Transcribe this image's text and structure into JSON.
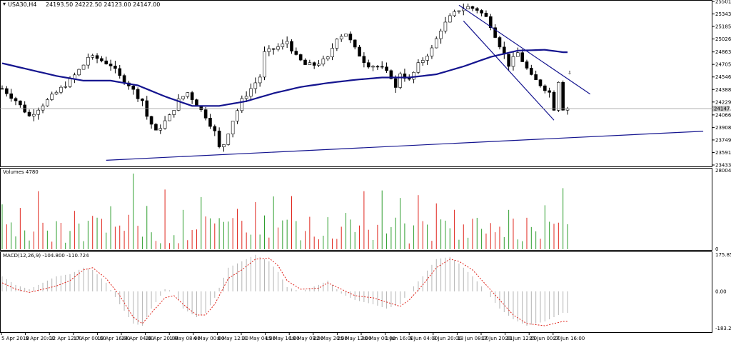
{
  "header": {
    "arrow_glyph": "▾",
    "symbol": "USA30,H4",
    "ohlc": "24193.50 24222.50 24123.00 24147.00"
  },
  "volume_panel": {
    "label": "Volumes 4780"
  },
  "macd_panel": {
    "label": "MACD(12,26,9) -104.800 -110.724"
  },
  "colors": {
    "bull": "#2e9e2e",
    "bear": "#e0251c",
    "ma": "#14148f",
    "trendline": "#14148f",
    "macd_signal": "#e0251c",
    "macd_hist": "#b4b4b4",
    "arrow": "#e0251c"
  },
  "annotation": {
    "arrow": "⇩"
  },
  "chart_data": [
    {
      "type": "candlestick",
      "ylim": [
        23433.1,
        25501.9
      ],
      "y_ticks": [
        "25501.90",
        "25343.50",
        "25185.10",
        "25026.70",
        "24863.50",
        "24705.10",
        "24546.70",
        "24388.30",
        "24229.90",
        "24066.70",
        "23908.30",
        "23749.90",
        "23591.50",
        "23433.10"
      ],
      "price_tag": "24147.00",
      "x_ticks": [
        "5 Apr 2018",
        "9 Apr 20:00",
        "12 Apr 12:00",
        "17 Apr 00:00",
        "19 Apr 16:00",
        "24 Apr 04:00",
        "26 Apr 20:00",
        "1 May 08:00",
        "4 May 00:00",
        "8 May 12:00",
        "11 May 04:00",
        "15 May 16:00",
        "18 May 08:00",
        "22 May 20:00",
        "25 May 12:00",
        "30 May 00:00",
        "1 Jun 16:00",
        "6 Jun 04:00",
        "8 Jun 20:00",
        "13 Jun 08:00",
        "17 Jun 20:01",
        "20 Jun 12:00",
        "25 Jun 00:00",
        "27 Jun 16:00"
      ],
      "close_path": [
        [
          0,
          24400
        ],
        [
          3,
          24250
        ],
        [
          6,
          24050
        ],
        [
          9,
          24200
        ],
        [
          12,
          24350
        ],
        [
          15,
          24500
        ],
        [
          18,
          24700
        ],
        [
          19,
          24800
        ],
        [
          21,
          24780
        ],
        [
          24,
          24700
        ],
        [
          26,
          24550
        ],
        [
          28,
          24450
        ],
        [
          30,
          24300
        ],
        [
          31,
          24250
        ],
        [
          32,
          24050
        ],
        [
          34,
          23850
        ],
        [
          37,
          24050
        ],
        [
          39,
          24250
        ],
        [
          41,
          24350
        ],
        [
          43,
          24200
        ],
        [
          45,
          24050
        ],
        [
          47,
          23850
        ],
        [
          48,
          23650
        ],
        [
          49,
          23700
        ],
        [
          51,
          24000
        ],
        [
          53,
          24250
        ],
        [
          55,
          24400
        ],
        [
          57,
          24550
        ],
        [
          58,
          24850
        ],
        [
          60,
          24900
        ],
        [
          62,
          24950
        ],
        [
          63,
          25000
        ],
        [
          65,
          24800
        ],
        [
          67,
          24700
        ],
        [
          69,
          24700
        ],
        [
          71,
          24750
        ],
        [
          72,
          24780
        ],
        [
          74,
          25050
        ],
        [
          76,
          25100
        ],
        [
          78,
          24900
        ],
        [
          80,
          24750
        ],
        [
          81,
          24700
        ],
        [
          83,
          24680
        ],
        [
          84,
          24650
        ],
        [
          86,
          24550
        ],
        [
          87,
          24400
        ],
        [
          88,
          24600
        ],
        [
          90,
          24500
        ],
        [
          92,
          24700
        ],
        [
          95,
          24900
        ],
        [
          97,
          25150
        ],
        [
          99,
          25300
        ],
        [
          101,
          25400
        ],
        [
          103,
          25430
        ],
        [
          105,
          25400
        ],
        [
          107,
          25300
        ],
        [
          108,
          25200
        ],
        [
          110,
          24950
        ],
        [
          112,
          24700
        ],
        [
          114,
          24850
        ],
        [
          115,
          24750
        ],
        [
          117,
          24550
        ],
        [
          119,
          24450
        ],
        [
          121,
          24350
        ],
        [
          122,
          24150
        ],
        [
          123,
          24500
        ],
        [
          124,
          24150
        ]
      ],
      "ma_path": [
        [
          0,
          24720
        ],
        [
          6,
          24640
        ],
        [
          12,
          24560
        ],
        [
          18,
          24500
        ],
        [
          24,
          24500
        ],
        [
          30,
          24440
        ],
        [
          36,
          24300
        ],
        [
          42,
          24180
        ],
        [
          48,
          24180
        ],
        [
          54,
          24240
        ],
        [
          60,
          24340
        ],
        [
          66,
          24420
        ],
        [
          72,
          24470
        ],
        [
          78,
          24510
        ],
        [
          84,
          24540
        ],
        [
          90,
          24540
        ],
        [
          96,
          24580
        ],
        [
          102,
          24680
        ],
        [
          108,
          24800
        ],
        [
          114,
          24880
        ],
        [
          120,
          24890
        ],
        [
          124,
          24860
        ]
      ],
      "trendlines": [
        {
          "from": [
            23,
            23493
          ],
          "to": [
            155,
            23860
          ]
        },
        {
          "from": [
            101,
            25455
          ],
          "to": [
            130,
            24330
          ]
        },
        {
          "from": [
            102,
            25255
          ],
          "to": [
            122,
            24000
          ]
        }
      ],
      "arrow_at": [
        125,
        24580
      ]
    },
    {
      "type": "bar",
      "label": "Volumes",
      "ylim": [
        0,
        28004
      ],
      "y_ticks": [
        "28004",
        "0"
      ]
    },
    {
      "type": "line",
      "label": "MACD(12,26,9)",
      "ylim": [
        -183.221,
        175.857
      ],
      "y_ticks": [
        "175.857",
        "0.00",
        "-183.221"
      ],
      "signal_path": [
        [
          0,
          40
        ],
        [
          3,
          10
        ],
        [
          6,
          -5
        ],
        [
          9,
          10
        ],
        [
          12,
          25
        ],
        [
          15,
          50
        ],
        [
          18,
          100
        ],
        [
          20,
          110
        ],
        [
          23,
          60
        ],
        [
          26,
          -20
        ],
        [
          29,
          -120
        ],
        [
          31,
          -150
        ],
        [
          33,
          -100
        ],
        [
          36,
          -30
        ],
        [
          38,
          -20
        ],
        [
          40,
          -60
        ],
        [
          43,
          -110
        ],
        [
          45,
          -110
        ],
        [
          47,
          -60
        ],
        [
          50,
          60
        ],
        [
          53,
          100
        ],
        [
          56,
          150
        ],
        [
          59,
          155
        ],
        [
          61,
          120
        ],
        [
          63,
          50
        ],
        [
          66,
          10
        ],
        [
          70,
          15
        ],
        [
          72,
          40
        ],
        [
          75,
          10
        ],
        [
          78,
          -20
        ],
        [
          82,
          -30
        ],
        [
          85,
          -50
        ],
        [
          88,
          -70
        ],
        [
          90,
          -40
        ],
        [
          93,
          30
        ],
        [
          96,
          110
        ],
        [
          99,
          150
        ],
        [
          101,
          140
        ],
        [
          104,
          100
        ],
        [
          107,
          30
        ],
        [
          110,
          -40
        ],
        [
          113,
          -110
        ],
        [
          116,
          -150
        ],
        [
          120,
          -160
        ],
        [
          124,
          -140
        ]
      ],
      "hist_path": [
        [
          0,
          70
        ],
        [
          3,
          30
        ],
        [
          6,
          10
        ],
        [
          9,
          40
        ],
        [
          12,
          70
        ],
        [
          15,
          80
        ],
        [
          18,
          110
        ],
        [
          20,
          100
        ],
        [
          23,
          40
        ],
        [
          26,
          -60
        ],
        [
          29,
          -150
        ],
        [
          31,
          -160
        ],
        [
          33,
          -80
        ],
        [
          36,
          10
        ],
        [
          38,
          0
        ],
        [
          40,
          -80
        ],
        [
          43,
          -120
        ],
        [
          45,
          -100
        ],
        [
          47,
          -30
        ],
        [
          50,
          110
        ],
        [
          53,
          140
        ],
        [
          56,
          170
        ],
        [
          59,
          140
        ],
        [
          61,
          90
        ],
        [
          63,
          20
        ],
        [
          66,
          0
        ],
        [
          70,
          30
        ],
        [
          72,
          50
        ],
        [
          75,
          -10
        ],
        [
          78,
          -40
        ],
        [
          82,
          -60
        ],
        [
          85,
          -80
        ],
        [
          88,
          -60
        ],
        [
          90,
          0
        ],
        [
          93,
          70
        ],
        [
          96,
          150
        ],
        [
          99,
          160
        ],
        [
          101,
          130
        ],
        [
          104,
          70
        ],
        [
          107,
          0
        ],
        [
          110,
          -80
        ],
        [
          113,
          -130
        ],
        [
          116,
          -160
        ],
        [
          120,
          -140
        ],
        [
          124,
          -100
        ]
      ]
    }
  ]
}
